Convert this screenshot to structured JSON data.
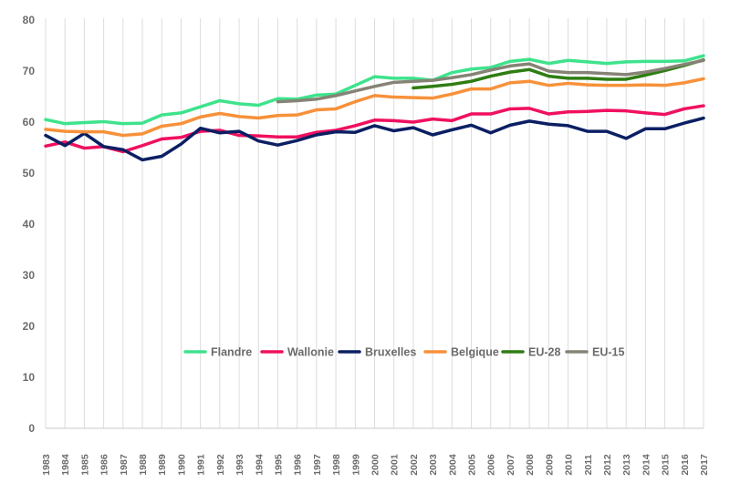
{
  "chart_data": {
    "type": "line",
    "title": "",
    "xlabel": "",
    "ylabel": "",
    "ylim": [
      0,
      80
    ],
    "yticks": [
      "0",
      "10",
      "20",
      "30",
      "40",
      "50",
      "60",
      "70",
      "80"
    ],
    "grid": "vertical",
    "legend": "bottom-right inside plot",
    "x": [
      "1983",
      "1984",
      "1985",
      "1986",
      "1987",
      "1988",
      "1989",
      "1990",
      "1991",
      "1992",
      "1993",
      "1994",
      "1995",
      "1996",
      "1997",
      "1998",
      "1999",
      "2000",
      "2001",
      "2002",
      "2003",
      "2004",
      "2005",
      "2006",
      "2007",
      "2008",
      "2009",
      "2010",
      "2011",
      "2012",
      "2013",
      "2014",
      "2015",
      "2016",
      "2017"
    ],
    "series": [
      {
        "name": "Flandre",
        "color": "#3ee38c",
        "values": [
          60.5,
          59.7,
          59.9,
          60.1,
          59.7,
          59.8,
          61.4,
          61.8,
          63.0,
          64.2,
          63.6,
          63.3,
          64.6,
          64.5,
          65.3,
          65.5,
          67.2,
          68.9,
          68.6,
          68.6,
          68.2,
          69.7,
          70.4,
          70.7,
          71.9,
          72.3,
          71.5,
          72.1,
          71.8,
          71.5,
          71.8,
          71.9,
          71.9,
          72.0,
          73.0
        ]
      },
      {
        "name": "Wallonie",
        "color": "#f0105f",
        "values": [
          55.3,
          56.1,
          54.9,
          55.2,
          54.2,
          55.4,
          56.7,
          57.0,
          58.2,
          58.4,
          57.4,
          57.3,
          57.1,
          57.1,
          58.0,
          58.4,
          59.3,
          60.4,
          60.3,
          60.0,
          60.6,
          60.3,
          61.6,
          61.6,
          62.6,
          62.7,
          61.6,
          62.0,
          62.1,
          62.3,
          62.2,
          61.8,
          61.5,
          62.6,
          63.2
        ]
      },
      {
        "name": "Bruxelles",
        "color": "#0b1f63",
        "values": [
          57.4,
          55.4,
          57.8,
          55.2,
          54.6,
          52.6,
          53.3,
          55.7,
          58.8,
          57.9,
          58.2,
          56.3,
          55.5,
          56.4,
          57.5,
          58.1,
          58.0,
          59.3,
          58.3,
          58.9,
          57.5,
          58.5,
          59.4,
          57.9,
          59.4,
          60.2,
          59.6,
          59.3,
          58.2,
          58.2,
          56.8,
          58.7,
          58.7,
          59.8,
          60.8
        ]
      },
      {
        "name": "Belgique",
        "color": "#f7913a",
        "values": [
          58.6,
          58.2,
          58.1,
          58.1,
          57.4,
          57.7,
          59.2,
          59.7,
          61.0,
          61.7,
          61.1,
          60.8,
          61.3,
          61.4,
          62.4,
          62.6,
          64.0,
          65.2,
          64.9,
          64.8,
          64.7,
          65.5,
          66.5,
          66.5,
          67.7,
          68.0,
          67.2,
          67.6,
          67.3,
          67.2,
          67.2,
          67.3,
          67.2,
          67.7,
          68.5
        ]
      },
      {
        "name": "EU-28",
        "color": "#2e7d12",
        "values": [
          null,
          null,
          null,
          null,
          null,
          null,
          null,
          null,
          null,
          null,
          null,
          null,
          null,
          null,
          null,
          null,
          null,
          null,
          null,
          66.7,
          67.0,
          67.4,
          68.0,
          69.0,
          69.8,
          70.3,
          69.0,
          68.6,
          68.6,
          68.4,
          68.4,
          69.2,
          70.1,
          71.1,
          72.2
        ]
      },
      {
        "name": "EU-15",
        "color": "#868376",
        "values": [
          null,
          null,
          null,
          null,
          null,
          null,
          null,
          null,
          null,
          null,
          null,
          null,
          64.0,
          64.2,
          64.5,
          65.2,
          66.1,
          67.0,
          67.8,
          68.0,
          68.2,
          68.7,
          69.3,
          70.2,
          71.0,
          71.4,
          70.0,
          69.7,
          69.7,
          69.5,
          69.3,
          69.8,
          70.5,
          71.3,
          72.1
        ]
      }
    ]
  }
}
